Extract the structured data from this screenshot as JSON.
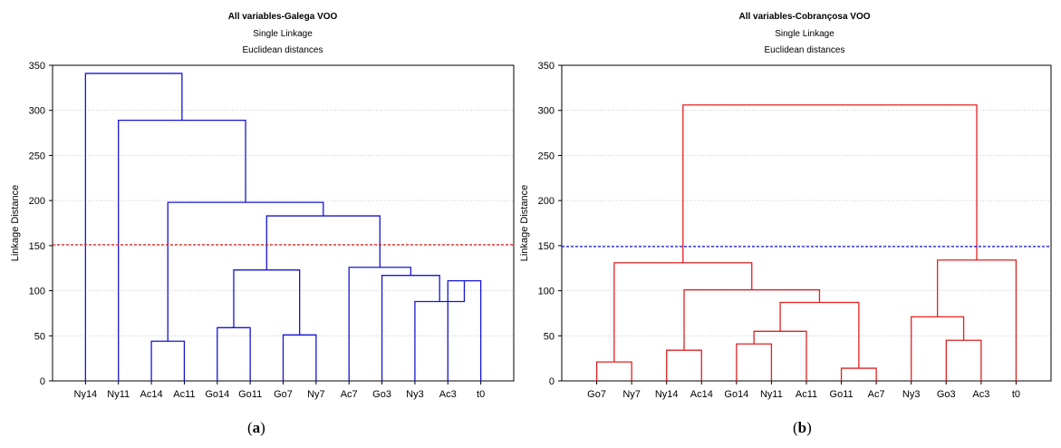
{
  "chart_data": [
    {
      "type": "dendrogram",
      "panel": "a",
      "title": "All variables-Galega VOO",
      "subtitle": [
        "Single Linkage",
        "Euclidean distances"
      ],
      "ylabel": "Linkage Distance",
      "xlabel": "",
      "ylim": [
        0,
        350
      ],
      "yticks": [
        0,
        50,
        100,
        150,
        200,
        250,
        300,
        350
      ],
      "grid": true,
      "line_color": "#1515d8",
      "cut_line": {
        "y": 151,
        "color": "#e02020",
        "style": "dashed"
      },
      "leaves": [
        "Ny14",
        "Ny11",
        "Ac14",
        "Ac11",
        "Go14",
        "Go11",
        "Go7",
        "Ny7",
        "Ac7",
        "Go3",
        "Ny3",
        "Ac3",
        "t0"
      ],
      "merges": [
        {
          "left": "Ac3",
          "right": "t0",
          "height": 111
        },
        {
          "left": "Ny3",
          "right": "Ac3+t0",
          "height": 88
        },
        {
          "left": "Go3",
          "right": "Ny3+Ac3+t0",
          "height": 117
        },
        {
          "left": "Ac7",
          "right": "Go3+Ny3+Ac3+t0",
          "height": 126
        },
        {
          "left": "Go7",
          "right": "Ny7",
          "height": 51
        },
        {
          "left": "Go14",
          "right": "Go11",
          "height": 59
        },
        {
          "left": "Go14+Go11",
          "right": "Go7+Ny7",
          "height": 123
        },
        {
          "left": "Go14..Ny7",
          "right": "Ac7..t0",
          "height": 183
        },
        {
          "left": "Ac14",
          "right": "Ac11",
          "height": 44
        },
        {
          "left": "Ac14+Ac11",
          "right": "Go14..t0",
          "height": 198
        },
        {
          "left": "Ny11",
          "right": "Ac14..t0",
          "height": 289
        },
        {
          "left": "Ny14",
          "right": "Ny11..t0",
          "height": 341
        }
      ]
    },
    {
      "type": "dendrogram",
      "panel": "b",
      "title": "All variables-Cobrançosa VOO",
      "subtitle": [
        "Single Linkage",
        "Euclidean distances"
      ],
      "ylabel": "Linkage Distance",
      "xlabel": "",
      "ylim": [
        0,
        350
      ],
      "yticks": [
        0,
        50,
        100,
        150,
        200,
        250,
        300,
        350
      ],
      "grid": true,
      "line_color": "#e02020",
      "cut_line": {
        "y": 149,
        "color": "#1515d8",
        "style": "dashed"
      },
      "leaves": [
        "Go7",
        "Ny7",
        "Ny14",
        "Ac14",
        "Go14",
        "Ny11",
        "Ac11",
        "Go11",
        "Ac7",
        "Ny3",
        "Go3",
        "Ac3",
        "t0"
      ],
      "merges": [
        {
          "left": "Go7",
          "right": "Ny7",
          "height": 21
        },
        {
          "left": "Ny14",
          "right": "Ac14",
          "height": 34
        },
        {
          "left": "Go14",
          "right": "Ny11",
          "height": 41
        },
        {
          "left": "Go14+Ny11",
          "right": "Ac11",
          "height": 55
        },
        {
          "left": "Go11",
          "right": "Ac7",
          "height": 14
        },
        {
          "left": "Go14..Ac11",
          "right": "Go11+Ac7",
          "height": 87
        },
        {
          "left": "Ny14+Ac14",
          "right": "Go14..Ac7",
          "height": 101
        },
        {
          "left": "Go7+Ny7",
          "right": "Ny14..Ac7",
          "height": 131
        },
        {
          "left": "Go3",
          "right": "Ac3",
          "height": 45
        },
        {
          "left": "Ny3",
          "right": "Go3+Ac3",
          "height": 71
        },
        {
          "left": "Ny3..Ac3",
          "right": "t0",
          "height": 134
        },
        {
          "left": "Go7..Ac7",
          "right": "Ny3..t0",
          "height": 306
        }
      ]
    }
  ],
  "captions": {
    "a": "a",
    "b": "b",
    "open": "(",
    "close": ")"
  }
}
